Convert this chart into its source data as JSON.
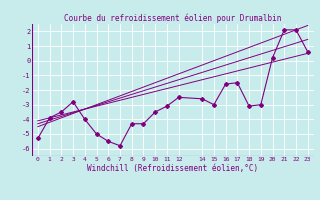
{
  "title": "Courbe du refroidissement éolien pour Drumalbin",
  "xlabel": "Windchill (Refroidissement éolien,°C)",
  "background_color": "#c8ecec",
  "line_color": "#800080",
  "x_data": [
    0,
    1,
    2,
    3,
    4,
    5,
    6,
    7,
    8,
    9,
    10,
    11,
    12,
    14,
    15,
    16,
    17,
    18,
    19,
    20,
    21,
    22,
    23
  ],
  "y_main": [
    -5.3,
    -3.9,
    -3.5,
    -2.8,
    -4.0,
    -5.0,
    -5.5,
    -5.8,
    -4.3,
    -4.3,
    -3.5,
    -3.1,
    -2.5,
    -2.6,
    -3.0,
    -1.6,
    -1.5,
    -3.1,
    -3.0,
    0.2,
    2.1,
    2.1,
    0.6
  ],
  "y_reg1": [
    -4.5,
    -4.2,
    -3.9,
    -3.6,
    -3.3,
    -3.0,
    -2.7,
    -2.4,
    -2.1,
    -1.8,
    -1.5,
    -1.2,
    -0.9,
    -0.3,
    0.0,
    0.3,
    0.6,
    0.9,
    1.2,
    1.5,
    1.8,
    2.1,
    2.4
  ],
  "y_reg2": [
    -4.3,
    -4.05,
    -3.8,
    -3.55,
    -3.3,
    -3.05,
    -2.8,
    -2.55,
    -2.3,
    -2.05,
    -1.8,
    -1.55,
    -1.3,
    -0.8,
    -0.55,
    -0.3,
    -0.05,
    0.2,
    0.45,
    0.7,
    0.95,
    1.2,
    1.45
  ],
  "y_reg3": [
    -4.1,
    -3.9,
    -3.7,
    -3.5,
    -3.3,
    -3.1,
    -2.9,
    -2.7,
    -2.5,
    -2.3,
    -2.1,
    -1.9,
    -1.7,
    -1.3,
    -1.1,
    -0.9,
    -0.7,
    -0.5,
    -0.3,
    -0.1,
    0.1,
    0.3,
    0.5
  ],
  "ylim": [
    -6.5,
    2.5
  ],
  "yticks": [
    -6,
    -5,
    -4,
    -3,
    -2,
    -1,
    0,
    1,
    2
  ],
  "xticks": [
    0,
    1,
    2,
    3,
    4,
    5,
    6,
    7,
    8,
    9,
    10,
    11,
    12,
    14,
    15,
    16,
    17,
    18,
    19,
    20,
    21,
    22,
    23
  ]
}
